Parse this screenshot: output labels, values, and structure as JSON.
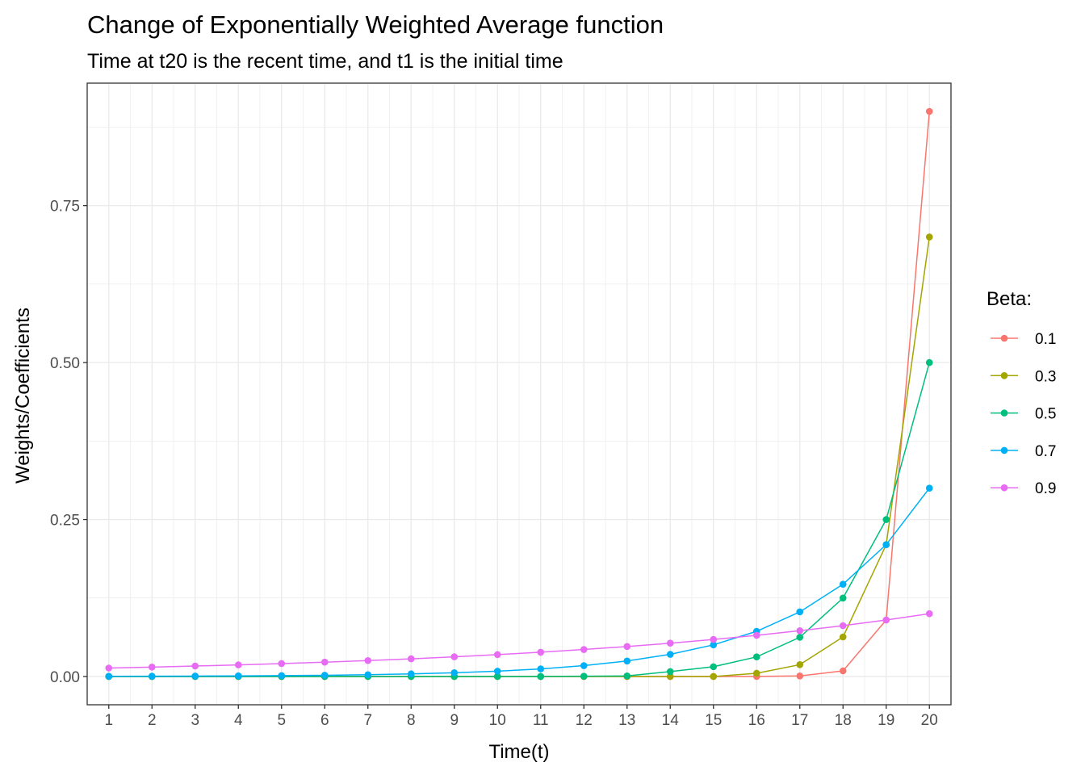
{
  "chart_data": {
    "type": "line",
    "title": "Change of Exponentially Weighted Average function",
    "subtitle": "Time at t20 is the recent time, and t1 is the initial time",
    "xlabel": "Time(t)",
    "ylabel": "Weights/Coefficients",
    "x": [
      1,
      2,
      3,
      4,
      5,
      6,
      7,
      8,
      9,
      10,
      11,
      12,
      13,
      14,
      15,
      16,
      17,
      18,
      19,
      20
    ],
    "xlim": [
      0.5,
      20.5
    ],
    "ylim": [
      -0.045,
      0.945
    ],
    "yticks": [
      0.0,
      0.25,
      0.5,
      0.75
    ],
    "ytick_labels": [
      "0.00",
      "0.25",
      "0.50",
      "0.75"
    ],
    "grid": true,
    "legend": {
      "title": "Beta:",
      "position": "right"
    },
    "series": [
      {
        "name": "0.1",
        "color": "#F8766D",
        "values": [
          0,
          0,
          0,
          0,
          0,
          0,
          0,
          0,
          0,
          0,
          0,
          0,
          0,
          0,
          0,
          9e-05,
          0.0009,
          0.009,
          0.09,
          0.9
        ]
      },
      {
        "name": "0.3",
        "color": "#A3A500",
        "values": [
          0,
          0,
          0,
          0,
          0,
          0,
          0,
          0,
          0,
          0,
          0,
          1e-06,
          5e-06,
          1.5e-05,
          5.1e-05,
          0.00517,
          0.0189,
          0.063,
          0.21,
          0.7
        ]
      },
      {
        "name": "0.5",
        "color": "#00BF7D",
        "values": [
          0,
          0,
          0,
          0,
          0,
          0,
          0,
          4e-06,
          1.5e-05,
          3e-05,
          0.00012,
          0.00049,
          0.00098,
          0.0078,
          0.0156,
          0.03125,
          0.0625,
          0.125,
          0.25,
          0.5
        ]
      },
      {
        "name": "0.7",
        "color": "#00B0F6",
        "values": [
          0.0004,
          0.0005,
          0.0007,
          0.001,
          0.0014,
          0.002,
          0.0029,
          0.0042,
          0.006,
          0.0085,
          0.0121,
          0.0173,
          0.0247,
          0.0353,
          0.0504,
          0.072,
          0.1029,
          0.147,
          0.21,
          0.3
        ]
      },
      {
        "name": "0.9",
        "color": "#E76BF3",
        "values": [
          0.0135,
          0.015,
          0.0167,
          0.0185,
          0.0206,
          0.0229,
          0.0254,
          0.0282,
          0.0314,
          0.0349,
          0.0387,
          0.043,
          0.0478,
          0.0531,
          0.059,
          0.0656,
          0.0729,
          0.081,
          0.09,
          0.1
        ]
      }
    ]
  }
}
